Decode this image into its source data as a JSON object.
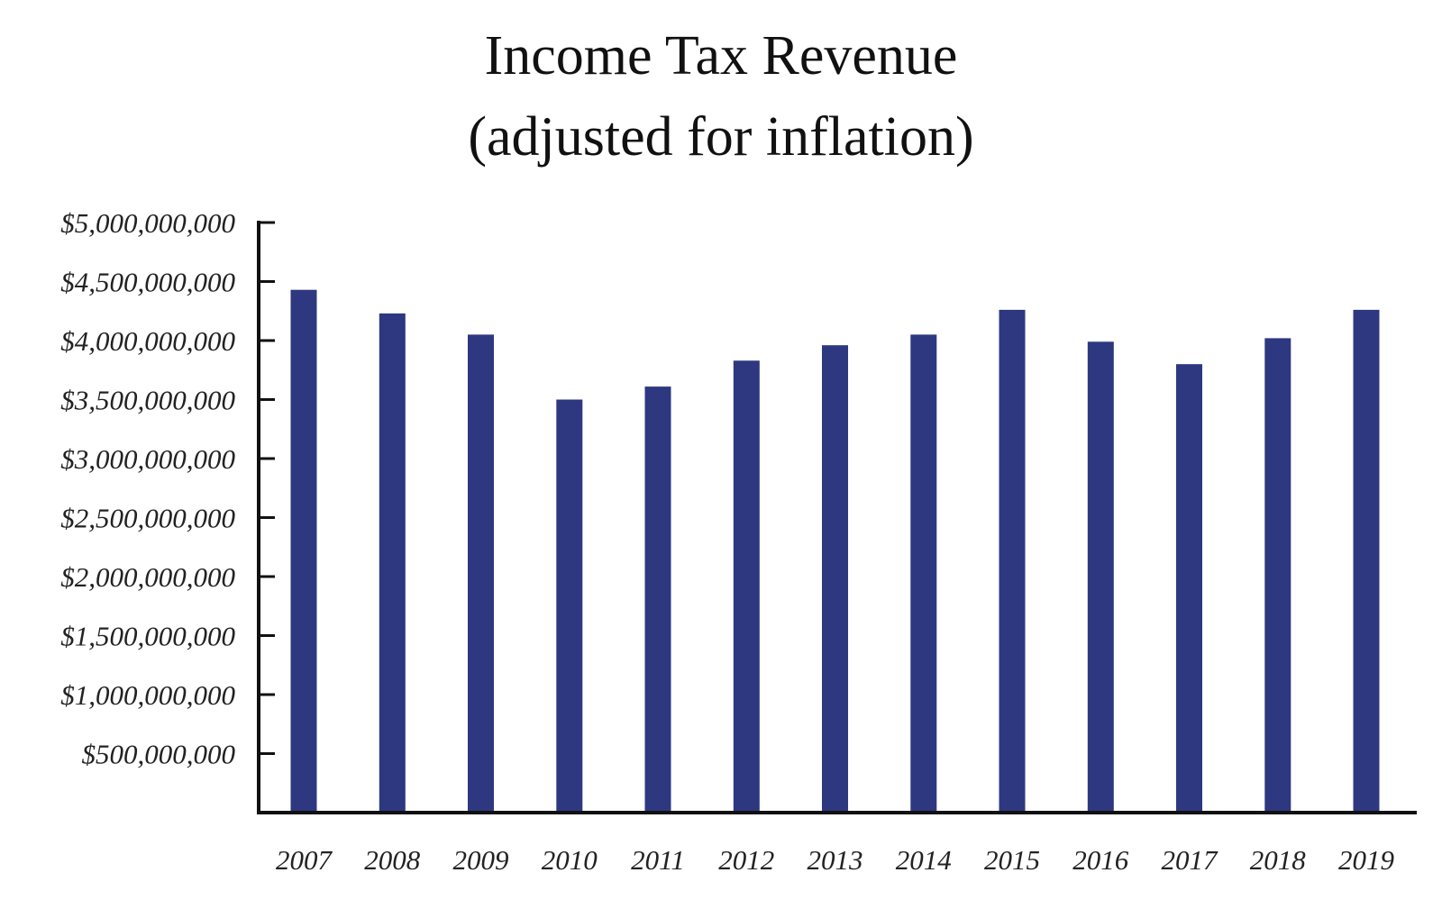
{
  "chart_data": {
    "type": "bar",
    "title": "Income Tax Revenue",
    "subtitle": "(adjusted for inflation)",
    "xlabel": "",
    "ylabel": "",
    "categories": [
      "2007",
      "2008",
      "2009",
      "2010",
      "2011",
      "2012",
      "2013",
      "2014",
      "2015",
      "2016",
      "2017",
      "2018",
      "2019"
    ],
    "values": [
      4430000000,
      4230000000,
      4050000000,
      3500000000,
      3610000000,
      3830000000,
      3960000000,
      4050000000,
      4260000000,
      3990000000,
      3800000000,
      4020000000,
      4260000000
    ],
    "ylim": [
      0,
      5000000000
    ],
    "yticks": [
      500000000,
      1000000000,
      1500000000,
      2000000000,
      2500000000,
      3000000000,
      3500000000,
      4000000000,
      4500000000,
      5000000000
    ],
    "ytick_labels": [
      "$500,000,000",
      "$1,000,000,000",
      "$1,500,000,000",
      "$2,000,000,000",
      "$2,500,000,000",
      "$3,000,000,000",
      "$3,500,000,000",
      "$4,000,000,000",
      "$4,500,000,000",
      "$5,000,000,000"
    ],
    "grid": false,
    "legend": "none",
    "bar_color": "#2e3880",
    "axis_color": "#111111"
  }
}
